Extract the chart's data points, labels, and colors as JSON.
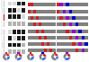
{
  "bg_color": "#ffffff",
  "panel_A_colors": [
    [
      "#4472c4",
      "#d0d0d0",
      "#d0d0d0",
      "#d0d0d0"
    ],
    [
      "#d0d0d0",
      "#4472c4",
      "#d0d0d0",
      "#d0d0d0"
    ],
    [
      "#d0d0d0",
      "#d0d0d0",
      "#cc2222",
      "#d0d0d0"
    ],
    [
      "#d0d0d0",
      "#d0d0d0",
      "#d0d0d0",
      "#d0d0d0"
    ]
  ],
  "panel_B_colors": [
    [
      "#4472c4",
      "#d0d0d0",
      "#d0d0d0",
      "#d0d0d0"
    ],
    [
      "#d0d0d0",
      "#d0d0d0",
      "#d0d0d0",
      "#d0d0d0"
    ],
    [
      "#d0d0d0",
      "#cc2222",
      "#d0d0d0",
      "#d0d0d0"
    ],
    [
      "#d0d0d0",
      "#d0d0d0",
      "#d0d0d0",
      "#d0d0d0"
    ]
  ],
  "blot_A_bands": [
    [
      0.85,
      0.85,
      0.85,
      0.85,
      0.1,
      0.1,
      0.1,
      0.1
    ],
    [
      0.1,
      0.1,
      0.1,
      0.1,
      0.85,
      0.85,
      0.1,
      0.1
    ],
    [
      0.1,
      0.1,
      0.1,
      0.1,
      0.1,
      0.1,
      0.85,
      0.85
    ],
    [
      0.7,
      0.7,
      0.7,
      0.7,
      0.7,
      0.7,
      0.7,
      0.7
    ]
  ],
  "blot_B_bands": [
    [
      0.85,
      0.85,
      0.1,
      0.1,
      0.1,
      0.1,
      0.1,
      0.1
    ],
    [
      0.1,
      0.1,
      0.85,
      0.85,
      0.1,
      0.1,
      0.1,
      0.1
    ],
    [
      0.1,
      0.1,
      0.1,
      0.1,
      0.1,
      0.1,
      0.7,
      0.7
    ],
    [
      0.7,
      0.7,
      0.7,
      0.7,
      0.7,
      0.7,
      0.7,
      0.7
    ]
  ],
  "dot_matrix_1": [
    [
      "#cc2222",
      "#cc2222",
      "#808080",
      "#808080",
      "#808080",
      "#808080",
      "#808080",
      "#808080",
      "#808080",
      "#808080"
    ],
    [
      "#cc2222",
      "#808080",
      "#cc2222",
      "#808080",
      "#808080",
      "#808080",
      "#808080",
      "#808080",
      "#808080",
      "#808080"
    ],
    [
      "#808080",
      "#cc2222",
      "#808080",
      "#cc2222",
      "#808080",
      "#808080",
      "#808080",
      "#808080",
      "#808080",
      "#808080"
    ],
    [
      "#808080",
      "#808080",
      "#cc2222",
      "#808080",
      "#cc2222",
      "#808080",
      "#808080",
      "#808080",
      "#808080",
      "#808080"
    ],
    [
      "#808080",
      "#808080",
      "#808080",
      "#cc2222",
      "#808080",
      "#cc2222",
      "#808080",
      "#808080",
      "#808080",
      "#808080"
    ],
    [
      "#808080",
      "#808080",
      "#808080",
      "#808080",
      "#cc2222",
      "#808080",
      "#cc2222",
      "#808080",
      "#808080",
      "#808080"
    ],
    [
      "#808080",
      "#808080",
      "#808080",
      "#808080",
      "#808080",
      "#cc2222",
      "#808080",
      "#cc2222",
      "#808080",
      "#808080"
    ],
    [
      "#808080",
      "#808080",
      "#808080",
      "#808080",
      "#808080",
      "#808080",
      "#cc2222",
      "#808080",
      "#cc2222",
      "#808080"
    ]
  ],
  "dot_matrix_2": [
    [
      "#cc2222",
      "#9900cc",
      "#808080",
      "#0000cc",
      "#808080",
      "#808080",
      "#808080",
      "#808080",
      "#808080",
      "#808080"
    ],
    [
      "#cc2222",
      "#808080",
      "#9900cc",
      "#808080",
      "#0000cc",
      "#808080",
      "#808080",
      "#808080",
      "#808080",
      "#808080"
    ],
    [
      "#808080",
      "#cc2222",
      "#808080",
      "#9900cc",
      "#808080",
      "#0000cc",
      "#808080",
      "#808080",
      "#808080",
      "#808080"
    ],
    [
      "#808080",
      "#808080",
      "#cc2222",
      "#808080",
      "#9900cc",
      "#808080",
      "#0000cc",
      "#808080",
      "#808080",
      "#808080"
    ],
    [
      "#808080",
      "#808080",
      "#808080",
      "#cc2222",
      "#808080",
      "#9900cc",
      "#808080",
      "#0000cc",
      "#808080",
      "#808080"
    ],
    [
      "#808080",
      "#808080",
      "#808080",
      "#808080",
      "#cc2222",
      "#808080",
      "#9900cc",
      "#808080",
      "#0000cc",
      "#808080"
    ],
    [
      "#808080",
      "#808080",
      "#808080",
      "#808080",
      "#808080",
      "#cc2222",
      "#808080",
      "#9900cc",
      "#808080",
      "#0000cc"
    ],
    [
      "#808080",
      "#808080",
      "#808080",
      "#808080",
      "#808080",
      "#808080",
      "#cc2222",
      "#808080",
      "#9900cc",
      "#808080"
    ]
  ],
  "pie_charts": [
    {
      "sizes": [
        0.55,
        0.25,
        0.2
      ],
      "sq_color": "#cc2222",
      "sq_pos": "top"
    },
    {
      "sizes": [
        0.4,
        0.35,
        0.25
      ],
      "sq_color": "#9900cc",
      "sq_pos": "top"
    },
    {
      "sizes": [
        0.5,
        0.3,
        0.2
      ],
      "sq_color": "#cc2222",
      "sq_pos": "top"
    },
    {
      "sizes": [
        0.45,
        0.3,
        0.25
      ],
      "sq_color": "#0000cc",
      "sq_pos": "top"
    },
    {
      "sizes": [
        0.6,
        0.2,
        0.2
      ],
      "sq_color": "#cc2222",
      "sq_pos": "top"
    },
    {
      "sizes": [
        0.35,
        0.4,
        0.25
      ],
      "sq_color": "#9900cc",
      "sq_pos": "top"
    }
  ],
  "pie_colors": [
    "#808080",
    "#4169e1",
    "#cc2222"
  ],
  "pie_donut_r": 0.55
}
